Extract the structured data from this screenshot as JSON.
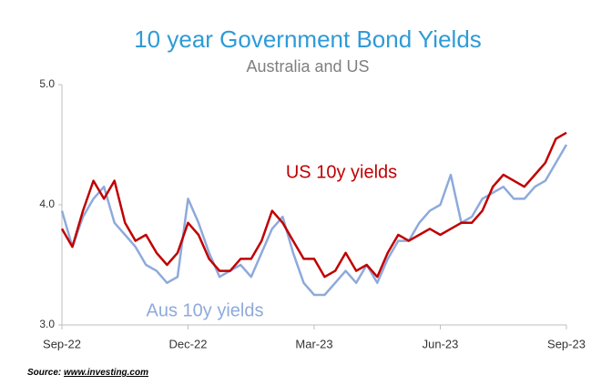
{
  "chart_data": {
    "type": "line",
    "title": "10 year Government Bond Yields",
    "subtitle": "Australia and US",
    "x": [
      0,
      0.25,
      0.5,
      0.75,
      1,
      1.25,
      1.5,
      1.75,
      2,
      2.25,
      2.5,
      2.75,
      3,
      3.25,
      3.5,
      3.75,
      4,
      4.25,
      4.5,
      4.75,
      5,
      5.25,
      5.5,
      5.75,
      6,
      6.25,
      6.5,
      6.75,
      7,
      7.25,
      7.5,
      7.75,
      8,
      8.25,
      8.5,
      8.75,
      9,
      9.25,
      9.5,
      9.75,
      10,
      10.25,
      10.5,
      10.75,
      11,
      11.25,
      11.5,
      11.75,
      12
    ],
    "series": [
      {
        "name": "US 10y yields",
        "color": "#c00000",
        "values": [
          3.8,
          3.65,
          3.95,
          4.2,
          4.05,
          4.2,
          3.85,
          3.7,
          3.75,
          3.6,
          3.5,
          3.6,
          3.85,
          3.75,
          3.55,
          3.45,
          3.45,
          3.55,
          3.55,
          3.7,
          3.95,
          3.85,
          3.7,
          3.55,
          3.55,
          3.4,
          3.45,
          3.6,
          3.45,
          3.5,
          3.4,
          3.6,
          3.75,
          3.7,
          3.75,
          3.8,
          3.75,
          3.8,
          3.85,
          3.85,
          3.95,
          4.15,
          4.25,
          4.2,
          4.15,
          4.25,
          4.35,
          4.55,
          4.6
        ]
      },
      {
        "name": "Aus 10y yields",
        "color": "#8eaadb",
        "values": [
          3.95,
          3.65,
          3.9,
          4.05,
          4.15,
          3.85,
          3.75,
          3.65,
          3.5,
          3.45,
          3.35,
          3.4,
          4.05,
          3.85,
          3.6,
          3.4,
          3.45,
          3.5,
          3.4,
          3.6,
          3.8,
          3.9,
          3.6,
          3.35,
          3.25,
          3.25,
          3.35,
          3.45,
          3.35,
          3.5,
          3.35,
          3.55,
          3.7,
          3.7,
          3.85,
          3.95,
          4.0,
          4.25,
          3.85,
          3.9,
          4.05,
          4.1,
          4.15,
          4.05,
          4.05,
          4.15,
          4.2,
          4.35,
          4.5
        ]
      }
    ],
    "xlim": [
      0,
      12
    ],
    "xticks": [
      {
        "value": 0,
        "label": "Sep-22"
      },
      {
        "value": 3,
        "label": "Dec-22"
      },
      {
        "value": 6,
        "label": "Mar-23"
      },
      {
        "value": 9,
        "label": "Jun-23"
      },
      {
        "value": 12,
        "label": "Sep-23"
      }
    ],
    "ylim": [
      3,
      5
    ],
    "yticks": [
      {
        "value": 3,
        "label": "3.0"
      },
      {
        "value": 4,
        "label": "4.0"
      },
      {
        "value": 5,
        "label": "5.0"
      }
    ],
    "grid": false,
    "source": "Source:",
    "source_link": "www.investing.com"
  }
}
